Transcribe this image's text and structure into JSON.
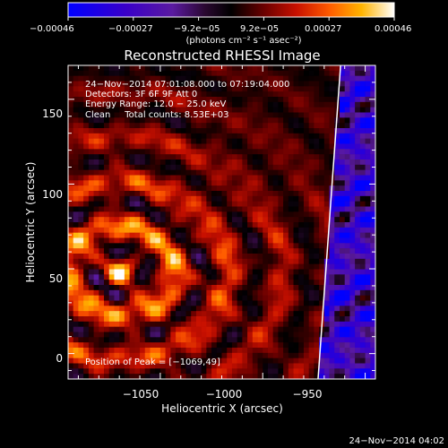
{
  "colorbar": {
    "tick_labels": [
      "−0.00046",
      "−0.00027",
      "−9.2e−05",
      "9.2e−05",
      "0.00027",
      "0.00046"
    ],
    "units_label": "(photons cm⁻² s⁻¹ asec⁻²)"
  },
  "chart_data": {
    "type": "heatmap",
    "title": "Reconstructed RHESSI Image",
    "xlabel": "Heliocentric X (arcsec)",
    "ylabel": "Heliocentric Y (arcsec)",
    "xlim": [
      -1095,
      -945
    ],
    "ylim": [
      -15,
      170
    ],
    "x_ticks": [
      -1050,
      -1000,
      -950
    ],
    "x_tick_labels": [
      "−1050",
      "−1000",
      "−950"
    ],
    "y_ticks": [
      0,
      50,
      100,
      150
    ],
    "y_tick_labels": [
      "0",
      "50",
      "100",
      "150"
    ],
    "colormap": "red-temperature",
    "color_range": [
      -0.00046,
      0.00046
    ],
    "peak": {
      "x": -1069,
      "y": 49
    },
    "limb_line": [
      {
        "x": -973,
        "y": -15
      },
      {
        "x": -962,
        "y": 170
      }
    ],
    "info_lines": [
      "24−Nov−2014 07:01:08.000 to 07:19:04.000",
      "Detectors: 3F 6F 9F  Att 0",
      "Energy Range: 12.0 − 25.0 keV",
      "Clean     Total counts: 8.53E+03"
    ],
    "peak_label": "Position of Peak = [−1069,49]"
  },
  "footer": {
    "timestamp": "24−Nov−2014 04:02"
  },
  "colors": {
    "background": "#000000",
    "text": "#ffffff",
    "limb_line": "#ffffff"
  }
}
